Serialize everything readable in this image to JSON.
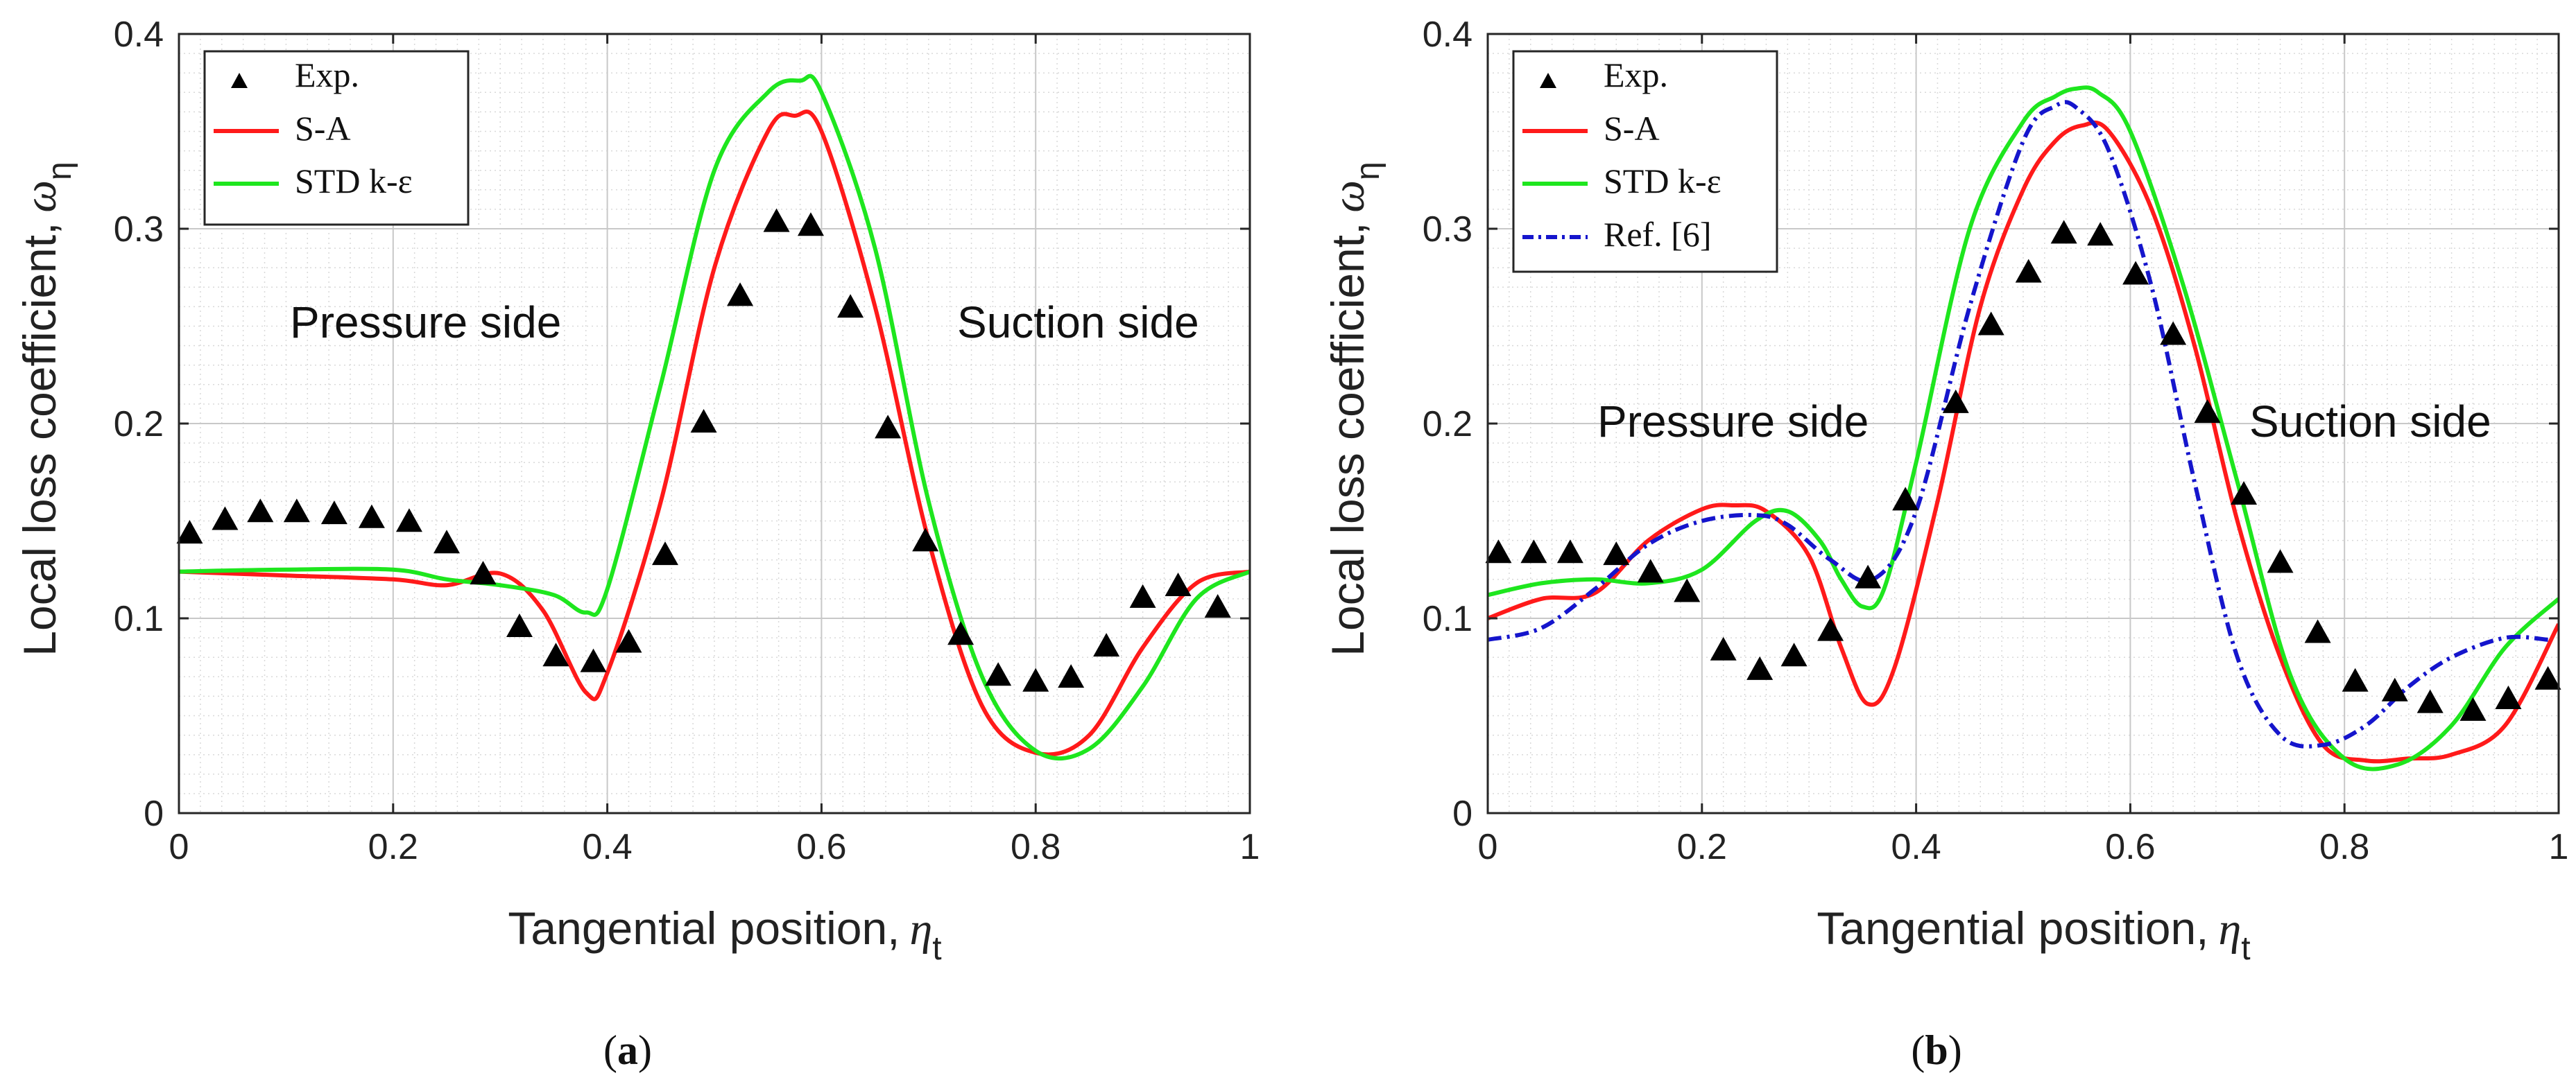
{
  "chart_data": [
    {
      "type": "line",
      "panel_label": "a",
      "xlabel": "Tangential position,",
      "xlabel_symbol": "η",
      "xlabel_subscript": "t",
      "ylabel": "Local loss coefficient,",
      "ylabel_symbol": "ω",
      "ylabel_subscript": "η",
      "xlim": [
        0,
        1
      ],
      "ylim": [
        0,
        0.4
      ],
      "xticks": [
        "0",
        "0.2",
        "0.4",
        "0.6",
        "0.8",
        "1"
      ],
      "yticks": [
        "0",
        "0.1",
        "0.2",
        "0.3",
        "0.4"
      ],
      "grid": true,
      "minor_grid": true,
      "legend_position": "top-left",
      "annotations": [
        "Pressure side",
        "Suction side"
      ],
      "series": [
        {
          "name": "Exp.",
          "style": "triangle-markers",
          "color": "#000000",
          "x": [
            0.01,
            0.043,
            0.076,
            0.11,
            0.145,
            0.18,
            0.215,
            0.25,
            0.284,
            0.318,
            0.352,
            0.387,
            0.42,
            0.454,
            0.49,
            0.524,
            0.558,
            0.59,
            0.627,
            0.662,
            0.697,
            0.73,
            0.765,
            0.8,
            0.833,
            0.866,
            0.9,
            0.933,
            0.97
          ],
          "y": [
            0.143,
            0.15,
            0.154,
            0.154,
            0.153,
            0.151,
            0.149,
            0.138,
            0.122,
            0.095,
            0.08,
            0.077,
            0.087,
            0.132,
            0.2,
            0.265,
            0.303,
            0.301,
            0.259,
            0.197,
            0.139,
            0.091,
            0.07,
            0.067,
            0.069,
            0.085,
            0.11,
            0.116,
            0.105
          ]
        },
        {
          "name": "S-A",
          "style": "solid",
          "color": "#ff1a1a",
          "x": [
            0,
            0.1,
            0.2,
            0.25,
            0.3,
            0.34,
            0.38,
            0.4,
            0.45,
            0.5,
            0.55,
            0.575,
            0.6,
            0.65,
            0.7,
            0.75,
            0.8,
            0.85,
            0.9,
            0.95,
            1
          ],
          "y": [
            0.124,
            0.122,
            0.12,
            0.117,
            0.123,
            0.104,
            0.062,
            0.072,
            0.16,
            0.28,
            0.35,
            0.358,
            0.35,
            0.26,
            0.14,
            0.055,
            0.031,
            0.04,
            0.085,
            0.118,
            0.124
          ]
        },
        {
          "name": "STD k-ε",
          "style": "solid",
          "color": "#1ee61e",
          "x": [
            0,
            0.1,
            0.2,
            0.25,
            0.3,
            0.35,
            0.38,
            0.4,
            0.45,
            0.5,
            0.55,
            0.58,
            0.6,
            0.65,
            0.7,
            0.75,
            0.8,
            0.85,
            0.9,
            0.95,
            1
          ],
          "y": [
            0.124,
            0.125,
            0.125,
            0.12,
            0.117,
            0.112,
            0.103,
            0.115,
            0.22,
            0.33,
            0.37,
            0.376,
            0.37,
            0.29,
            0.16,
            0.07,
            0.032,
            0.033,
            0.065,
            0.11,
            0.124
          ]
        }
      ]
    },
    {
      "type": "line",
      "panel_label": "b",
      "xlabel": "Tangential position,",
      "xlabel_symbol": "η",
      "xlabel_subscript": "t",
      "ylabel": "Local loss coefficient,",
      "ylabel_symbol": "ω",
      "ylabel_subscript": "η",
      "xlim": [
        0,
        1
      ],
      "ylim": [
        0,
        0.4
      ],
      "xticks": [
        "0",
        "0.2",
        "0.4",
        "0.6",
        "0.8",
        "1"
      ],
      "yticks": [
        "0",
        "0.1",
        "0.2",
        "0.3",
        "0.4"
      ],
      "grid": true,
      "minor_grid": true,
      "legend_position": "top-left",
      "annotations": [
        "Pressure side",
        "Suction side"
      ],
      "series": [
        {
          "name": "Exp.",
          "style": "triangle-markers",
          "color": "#000000",
          "x": [
            0.01,
            0.043,
            0.077,
            0.12,
            0.152,
            0.186,
            0.22,
            0.254,
            0.286,
            0.32,
            0.355,
            0.39,
            0.437,
            0.47,
            0.505,
            0.538,
            0.572,
            0.605,
            0.64,
            0.672,
            0.706,
            0.74,
            0.775,
            0.81,
            0.847,
            0.88,
            0.92,
            0.953,
            0.99
          ],
          "y": [
            0.133,
            0.133,
            0.133,
            0.132,
            0.123,
            0.113,
            0.083,
            0.073,
            0.08,
            0.093,
            0.12,
            0.16,
            0.21,
            0.25,
            0.277,
            0.297,
            0.296,
            0.276,
            0.245,
            0.205,
            0.163,
            0.128,
            0.092,
            0.067,
            0.062,
            0.056,
            0.052,
            0.058,
            0.068
          ]
        },
        {
          "name": "S-A",
          "style": "solid",
          "color": "#ff1a1a",
          "x": [
            0,
            0.05,
            0.1,
            0.15,
            0.2,
            0.23,
            0.26,
            0.3,
            0.33,
            0.355,
            0.38,
            0.42,
            0.46,
            0.5,
            0.53,
            0.555,
            0.58,
            0.62,
            0.66,
            0.7,
            0.74,
            0.78,
            0.82,
            0.86,
            0.9,
            0.95,
            1
          ],
          "y": [
            0.1,
            0.11,
            0.113,
            0.14,
            0.156,
            0.158,
            0.155,
            0.132,
            0.085,
            0.056,
            0.075,
            0.16,
            0.26,
            0.32,
            0.345,
            0.353,
            0.35,
            0.31,
            0.24,
            0.15,
            0.08,
            0.035,
            0.027,
            0.028,
            0.03,
            0.045,
            0.097
          ]
        },
        {
          "name": "STD k-ε",
          "style": "solid",
          "color": "#1ee61e",
          "x": [
            0,
            0.05,
            0.1,
            0.15,
            0.2,
            0.25,
            0.28,
            0.31,
            0.33,
            0.35,
            0.37,
            0.4,
            0.45,
            0.5,
            0.53,
            0.55,
            0.57,
            0.6,
            0.65,
            0.7,
            0.75,
            0.8,
            0.85,
            0.9,
            0.95,
            1
          ],
          "y": [
            0.112,
            0.118,
            0.12,
            0.118,
            0.125,
            0.15,
            0.155,
            0.14,
            0.12,
            0.106,
            0.115,
            0.18,
            0.3,
            0.355,
            0.368,
            0.372,
            0.37,
            0.35,
            0.27,
            0.17,
            0.07,
            0.028,
            0.025,
            0.045,
            0.085,
            0.11
          ]
        },
        {
          "name": "Ref. [6]",
          "style": "dash-dot",
          "color": "#1515cc",
          "x": [
            0,
            0.05,
            0.1,
            0.15,
            0.2,
            0.25,
            0.28,
            0.32,
            0.36,
            0.4,
            0.45,
            0.5,
            0.53,
            0.55,
            0.58,
            0.62,
            0.66,
            0.7,
            0.74,
            0.78,
            0.82,
            0.86,
            0.9,
            0.95,
            0.99
          ],
          "y": [
            0.089,
            0.095,
            0.115,
            0.138,
            0.15,
            0.153,
            0.148,
            0.13,
            0.12,
            0.155,
            0.26,
            0.345,
            0.363,
            0.362,
            0.34,
            0.27,
            0.17,
            0.08,
            0.04,
            0.035,
            0.045,
            0.065,
            0.08,
            0.09,
            0.089
          ]
        }
      ]
    }
  ]
}
